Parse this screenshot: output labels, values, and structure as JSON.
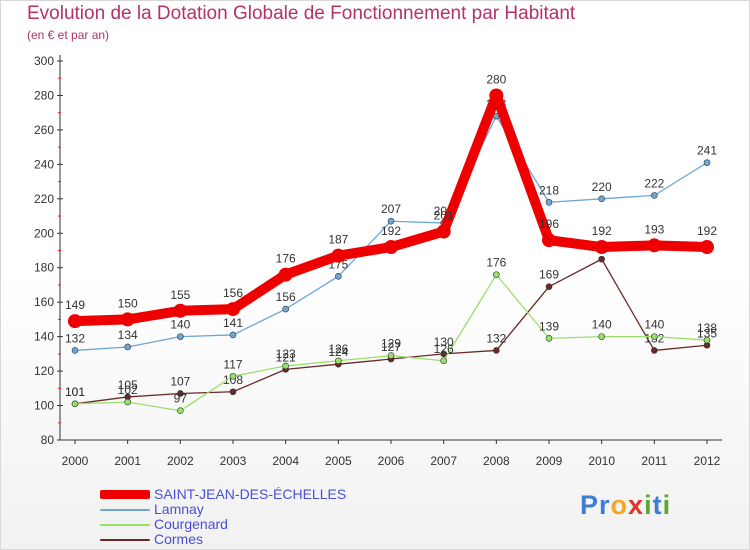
{
  "chart_data": {
    "type": "line",
    "title": "Evolution de la Dotation Globale de Fonctionnement par Habitant",
    "subtitle": "(en € et par an)",
    "xlabel": "",
    "ylabel": "",
    "categories": [
      "2000",
      "2001",
      "2002",
      "2003",
      "2004",
      "2005",
      "2006",
      "2007",
      "2008",
      "2009",
      "2010",
      "2011",
      "2012"
    ],
    "y_ticks": [
      80,
      100,
      120,
      140,
      160,
      180,
      200,
      220,
      240,
      260,
      280,
      300
    ],
    "ylim": [
      80,
      300
    ],
    "grid": false,
    "legend_position": "bottom-left",
    "series": [
      {
        "name": "SAINT-JEAN-DES-ÉCHELLES",
        "color": "#ee0000",
        "values": [
          149,
          150,
          155,
          156,
          176,
          187,
          192,
          201,
          280,
          196,
          192,
          193,
          192
        ]
      },
      {
        "name": "Lamnay",
        "color": "#6ea6d8",
        "values": [
          132,
          134,
          140,
          141,
          156,
          175,
          207,
          206,
          268,
          218,
          220,
          222,
          241
        ]
      },
      {
        "name": "Courgenard",
        "color": "#99e06a",
        "values": [
          101,
          102,
          97,
          117,
          123,
          126,
          129,
          126,
          176,
          139,
          140,
          140,
          138
        ]
      },
      {
        "name": "Cormes",
        "color": "#6b2a2a",
        "values": [
          101,
          105,
          107,
          108,
          121,
          124,
          127,
          130,
          132,
          169,
          185,
          132,
          135
        ]
      }
    ]
  },
  "brand": {
    "letters": [
      "P",
      "r",
      "o",
      "x",
      "i",
      "t",
      "i"
    ],
    "colors": [
      "#3d7fd2",
      "#3d7fd2",
      "#f5a623",
      "#e2342b",
      "#5aa832",
      "#3d7fd2",
      "#5aa832"
    ]
  }
}
